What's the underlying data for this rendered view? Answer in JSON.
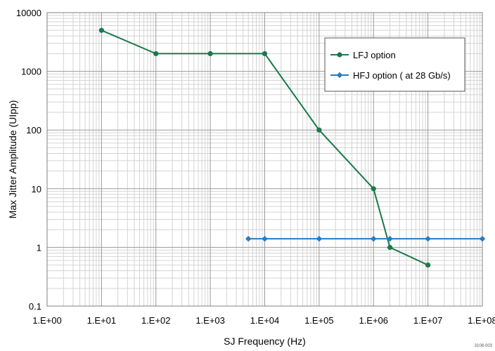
{
  "chart_data": {
    "type": "line",
    "title": "",
    "xlabel": "SJ Frequency (Hz)",
    "ylabel": "Max Jitter Amplitude (UIpp)",
    "x_scale": "log",
    "y_scale": "log",
    "xlim": [
      1,
      100000000
    ],
    "ylim": [
      0.1,
      10000
    ],
    "x_tick_labels": [
      "1.E+00",
      "1.E+01",
      "1.E+02",
      "1.E+03",
      "1.E+04",
      "1.E+05",
      "1.E+06",
      "1.E+07",
      "1.E+08"
    ],
    "y_tick_labels": [
      "0.1",
      "1",
      "10",
      "100",
      "1000",
      "10000"
    ],
    "grid": true,
    "legend_position": "top-right",
    "series": [
      {
        "name": "LFJ option",
        "color": "#1a7a4a",
        "marker": "circle",
        "points": [
          [
            10,
            5000
          ],
          [
            100,
            2000
          ],
          [
            1000,
            2000
          ],
          [
            10000,
            2000
          ],
          [
            100000,
            100
          ],
          [
            1000000,
            10
          ],
          [
            2000000,
            1
          ],
          [
            10000000,
            0.5
          ]
        ]
      },
      {
        "name": "HFJ option ( at 28 Gb/s)",
        "color": "#2a7ac0",
        "marker": "diamond",
        "points": [
          [
            5000,
            1.4
          ],
          [
            10000,
            1.4
          ],
          [
            100000,
            1.4
          ],
          [
            1000000,
            1.4
          ],
          [
            2000000,
            1.4
          ],
          [
            10000000,
            1.4
          ],
          [
            100000000,
            1.4
          ]
        ]
      }
    ],
    "corner_note": "3108-003"
  }
}
